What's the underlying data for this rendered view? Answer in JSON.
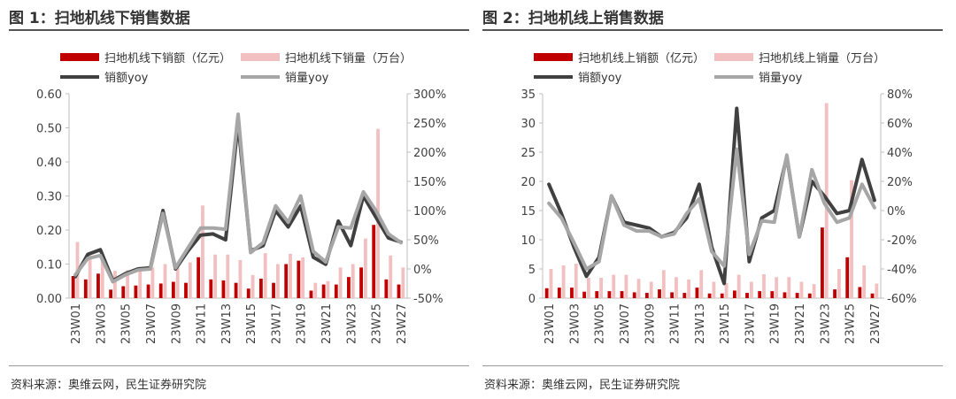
{
  "panels": [
    {
      "title": "图 1：扫地机线下销售数据",
      "source": "资料来源：奥维云网，民生证券研究院",
      "legend": {
        "bar1": "扫地机线下销额（亿元）",
        "bar2": "扫地机线下销量（万台）",
        "line1": "销额yoy",
        "line2": "销量yoy"
      }
    },
    {
      "title": "图 2：扫地机线上销售数据",
      "source": "资料来源：奥维云网，民生证券研究院",
      "legend": {
        "bar1": "扫地机线上销额（亿元）",
        "bar2": "扫地机线上销量（万台）",
        "line1": "销额yoy",
        "line2": "销量yoy"
      }
    }
  ],
  "chart_data": [
    {
      "type": "bar",
      "title": "图 1：扫地机线下销售数据",
      "categories": [
        "23W01",
        "23W02",
        "23W03",
        "23W04",
        "23W05",
        "23W06",
        "23W07",
        "23W08",
        "23W09",
        "23W10",
        "23W11",
        "23W12",
        "23W13",
        "23W14",
        "23W15",
        "23W16",
        "23W17",
        "23W18",
        "23W19",
        "23W20",
        "23W21",
        "23W22",
        "23W23",
        "23W24",
        "23W25",
        "23W26",
        "23W27"
      ],
      "x_tick_labels": [
        "23W01",
        "23W03",
        "23W05",
        "23W07",
        "23W09",
        "23W11",
        "23W13",
        "23W15",
        "23W17",
        "23W19",
        "23W21",
        "23W23",
        "23W25",
        "23W27"
      ],
      "y_left": {
        "range": [
          0,
          0.6
        ],
        "ticks": [
          "0.00",
          "0.10",
          "0.20",
          "0.30",
          "0.40",
          "0.50",
          "0.60"
        ]
      },
      "y_right": {
        "range": [
          -50,
          300
        ],
        "ticks": [
          "-50%",
          "0%",
          "50%",
          "100%",
          "150%",
          "200%",
          "250%",
          "300%"
        ]
      },
      "series": [
        {
          "name": "扫地机线下销额（亿元）",
          "kind": "bar",
          "axis": "left",
          "color": "#c00000",
          "values": [
            0.065,
            0.055,
            0.072,
            0.025,
            0.035,
            0.037,
            0.04,
            0.043,
            0.048,
            0.045,
            0.12,
            0.055,
            0.052,
            0.045,
            0.028,
            0.057,
            0.045,
            0.1,
            0.11,
            0.022,
            0.04,
            0.04,
            0.062,
            0.09,
            0.215,
            0.055,
            0.04
          ]
        },
        {
          "name": "扫地机线下销量（万台）",
          "kind": "bar",
          "axis": "left",
          "color": "#f2c0c0",
          "values": [
            0.165,
            0.125,
            0.13,
            0.08,
            0.082,
            0.088,
            0.09,
            0.1,
            0.1,
            0.105,
            0.272,
            0.128,
            0.128,
            0.112,
            0.068,
            0.132,
            0.1,
            0.13,
            0.12,
            0.045,
            0.05,
            0.09,
            0.1,
            0.175,
            0.497,
            0.125,
            0.09
          ]
        },
        {
          "name": "销额yoy",
          "kind": "line",
          "axis": "right",
          "color": "#404040",
          "values": [
            -13,
            25,
            33,
            -20,
            -8,
            0,
            2,
            100,
            0,
            31,
            58,
            60,
            50,
            250,
            31,
            40,
            100,
            72,
            108,
            20,
            8,
            82,
            40,
            125,
            89,
            53,
            46
          ]
        },
        {
          "name": "销量yoy",
          "kind": "line",
          "axis": "right",
          "color": "#a6a6a6",
          "values": [
            -10,
            18,
            23,
            -22,
            -10,
            -2,
            0,
            95,
            2,
            36,
            70,
            70,
            68,
            265,
            28,
            45,
            108,
            80,
            125,
            30,
            12,
            72,
            70,
            132,
            100,
            60,
            45
          ]
        }
      ]
    },
    {
      "type": "bar",
      "title": "图 2：扫地机线上销售数据",
      "categories": [
        "23W01",
        "23W02",
        "23W03",
        "23W04",
        "23W05",
        "23W06",
        "23W07",
        "23W08",
        "23W09",
        "23W10",
        "23W11",
        "23W12",
        "23W13",
        "23W14",
        "23W15",
        "23W16",
        "23W17",
        "23W18",
        "23W19",
        "23W20",
        "23W21",
        "23W22",
        "23W23",
        "23W24",
        "23W25",
        "23W26",
        "23W27"
      ],
      "x_tick_labels": [
        "23W01",
        "23W03",
        "23W05",
        "23W07",
        "23W09",
        "23W11",
        "23W13",
        "23W15",
        "23W17",
        "23W19",
        "23W21",
        "23W23",
        "23W25",
        "23W27"
      ],
      "y_left": {
        "range": [
          0,
          35
        ],
        "ticks": [
          "0",
          "5",
          "10",
          "15",
          "20",
          "25",
          "30",
          "35"
        ]
      },
      "y_right": {
        "range": [
          -60,
          80
        ],
        "ticks": [
          "-60%",
          "-40%",
          "-20%",
          "0%",
          "20%",
          "40%",
          "60%",
          "80%"
        ]
      },
      "series": [
        {
          "name": "扫地机线上销额（亿元）",
          "kind": "bar",
          "axis": "left",
          "color": "#c00000",
          "values": [
            1.7,
            1.8,
            1.8,
            1.1,
            1.2,
            1.2,
            1.2,
            1.0,
            0.9,
            1.5,
            1.0,
            0.9,
            1.8,
            0.8,
            0.8,
            1.3,
            0.9,
            1.2,
            1.2,
            1.0,
            0.9,
            0.8,
            12.1,
            1.5,
            7.0,
            1.9,
            0.8
          ]
        },
        {
          "name": "扫地机线上销量（万台）",
          "kind": "bar",
          "axis": "left",
          "color": "#f2c0c0",
          "values": [
            5.0,
            5.6,
            5.9,
            3.5,
            3.5,
            4.0,
            4.0,
            3.3,
            2.8,
            4.8,
            3.6,
            3.2,
            4.8,
            2.8,
            2.6,
            4.0,
            2.8,
            4.1,
            3.6,
            3.6,
            2.8,
            2.4,
            33.4,
            5.0,
            20.2,
            5.6,
            2.5
          ]
        },
        {
          "name": "销额yoy",
          "kind": "line",
          "axis": "right",
          "color": "#404040",
          "values": [
            18,
            -2,
            -25,
            -45,
            -32,
            10,
            -8,
            -10,
            -12,
            -18,
            -15,
            -5,
            18,
            -25,
            -50,
            70,
            -35,
            -5,
            0,
            37,
            -18,
            20,
            10,
            -2,
            0,
            35,
            7
          ]
        },
        {
          "name": "销量yoy",
          "kind": "line",
          "axis": "right",
          "color": "#a6a6a6",
          "values": [
            5,
            -5,
            -22,
            -40,
            -35,
            10,
            -10,
            -14,
            -14,
            -18,
            -16,
            -2,
            8,
            -28,
            -38,
            42,
            -30,
            -7,
            -8,
            38,
            -18,
            28,
            5,
            -8,
            -5,
            18,
            2
          ]
        }
      ]
    }
  ]
}
